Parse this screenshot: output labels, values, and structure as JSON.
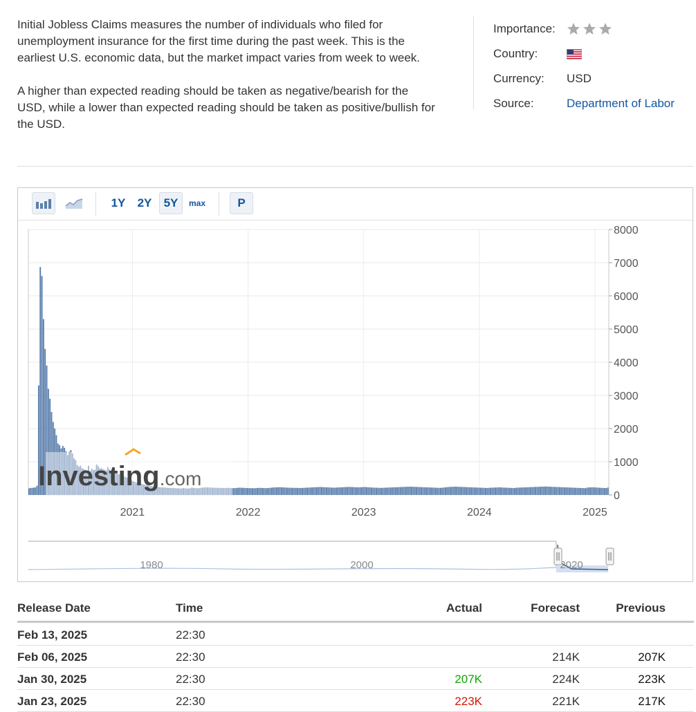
{
  "description": {
    "p1": "Initial Jobless Claims measures the number of individuals who filed for unemployment insurance for the first time during the past week. This is the earliest U.S. economic data, but the market impact varies from week to week.",
    "p2": "A higher than expected reading should be taken as negative/bearish for the USD, while a lower than expected reading should be taken as positive/bullish for the USD."
  },
  "meta": {
    "importance_label": "Importance:",
    "importance_stars": 3,
    "country_label": "Country:",
    "country_flag": "us-flag-icon",
    "currency_label": "Currency:",
    "currency_value": "USD",
    "source_label": "Source:",
    "source_value": "Department of Labor",
    "link_color": "#1256a0"
  },
  "toolbar": {
    "bar_icon": "bar-chart-icon",
    "line_icon": "line-chart-icon",
    "ranges": [
      "1Y",
      "2Y",
      "5Y",
      "max"
    ],
    "selected_range": "5Y",
    "p_label": "P"
  },
  "chart_data": {
    "type": "bar",
    "title": "",
    "xlabel": "",
    "ylabel": "",
    "ylim": [
      0,
      8000
    ],
    "y_ticks": [
      "0",
      "1000",
      "2000",
      "3000",
      "4000",
      "5000",
      "6000",
      "7000",
      "8000"
    ],
    "x_ticks": [
      "2021",
      "2022",
      "2023",
      "2024",
      "2025"
    ],
    "grid": true,
    "bar_color": "#5b7fad",
    "series": [
      {
        "values": [
          200,
          210,
          215,
          220,
          230,
          280,
          3300,
          6870,
          6600,
          5300,
          4400,
          3900,
          3200,
          2900,
          2500,
          2200,
          2000,
          1800,
          1550,
          1500,
          1400,
          1480,
          1420,
          1320,
          1200,
          1300,
          1350,
          1250,
          1100,
          1050,
          900,
          850,
          880,
          810,
          780,
          760,
          740,
          880,
          720,
          790,
          750,
          760,
          920,
          870,
          800,
          810,
          780,
          760,
          740,
          840,
          770,
          720,
          700,
          680,
          660,
          640,
          620,
          600,
          580,
          560,
          540,
          520,
          480,
          450,
          430,
          410,
          390,
          370,
          360,
          340,
          330,
          320,
          310,
          300,
          290,
          280,
          270,
          260,
          250,
          245,
          240,
          235,
          230,
          228,
          225,
          220,
          215,
          212,
          210,
          208,
          205,
          203,
          200,
          198,
          196,
          195,
          210,
          200,
          195,
          190,
          200,
          220,
          215,
          210,
          205,
          200,
          210,
          215,
          220,
          225,
          230,
          228,
          225,
          222,
          220,
          218,
          216,
          215,
          214,
          213,
          212,
          211,
          210,
          215,
          212,
          210,
          208,
          206,
          205,
          210,
          215,
          220,
          218,
          215,
          212,
          210,
          208,
          206,
          205,
          204,
          203,
          205,
          210,
          215,
          212,
          210,
          208,
          206,
          205,
          210,
          215,
          220,
          225,
          228,
          230,
          232,
          235,
          230,
          228,
          225,
          222,
          220,
          218,
          216,
          215,
          214,
          213,
          212,
          211,
          210,
          212,
          215,
          218,
          220,
          222,
          225,
          228,
          230,
          232,
          235,
          238,
          240,
          238,
          235,
          232,
          230,
          228,
          225,
          222,
          220,
          218,
          222,
          225,
          228,
          230,
          232,
          235,
          238,
          240,
          242,
          240,
          238,
          235,
          232,
          230,
          228,
          232,
          235,
          238,
          240,
          235,
          230,
          228,
          225,
          222,
          220,
          218,
          216,
          214,
          212,
          215,
          218,
          220,
          222,
          224,
          226,
          228,
          230,
          232,
          234,
          236,
          238,
          240,
          242,
          244,
          246,
          248,
          250,
          248,
          246,
          244,
          242,
          240,
          238,
          236,
          234,
          232,
          230,
          228,
          226,
          224,
          222,
          220,
          218,
          216,
          214,
          212,
          220,
          225,
          230,
          235,
          240,
          242,
          245,
          248,
          250,
          248,
          246,
          244,
          242,
          240,
          238,
          236,
          234,
          232,
          230,
          228,
          226,
          224,
          222,
          220,
          218,
          216,
          214,
          212,
          210,
          215,
          218,
          220,
          222,
          224,
          226,
          228,
          230,
          225,
          222,
          220,
          218,
          216,
          214,
          212,
          210,
          208,
          218,
          220,
          222,
          224,
          226,
          228,
          230,
          232,
          234,
          236,
          238,
          240,
          242,
          244,
          246,
          248,
          250,
          252,
          254,
          252,
          250,
          248,
          246,
          244,
          242,
          240,
          238,
          236,
          234,
          232,
          230,
          228,
          226,
          224,
          222,
          220,
          218,
          216,
          214,
          212,
          210,
          208,
          206,
          204,
          222,
          225,
          228,
          230,
          232,
          226,
          223,
          220,
          217,
          214,
          211,
          208,
          207,
          223
        ]
      }
    ]
  },
  "watermark": "Investing.com",
  "navigator": {
    "labels": [
      "1980",
      "2000",
      "2020"
    ]
  },
  "table": {
    "headers": {
      "release_date": "Release Date",
      "time": "Time",
      "actual": "Actual",
      "forecast": "Forecast",
      "previous": "Previous"
    },
    "rows": [
      {
        "date": "Feb 13, 2025",
        "time": "22:30",
        "actual": "",
        "actual_color": "",
        "forecast": "",
        "previous": ""
      },
      {
        "date": "Feb 06, 2025",
        "time": "22:30",
        "actual": "",
        "actual_color": "",
        "forecast": "214K",
        "previous": "207K"
      },
      {
        "date": "Jan 30, 2025",
        "time": "22:30",
        "actual": "207K",
        "actual_color": "green",
        "forecast": "224K",
        "previous": "223K"
      },
      {
        "date": "Jan 23, 2025",
        "time": "22:30",
        "actual": "223K",
        "actual_color": "red",
        "forecast": "221K",
        "previous": "217K"
      }
    ]
  }
}
